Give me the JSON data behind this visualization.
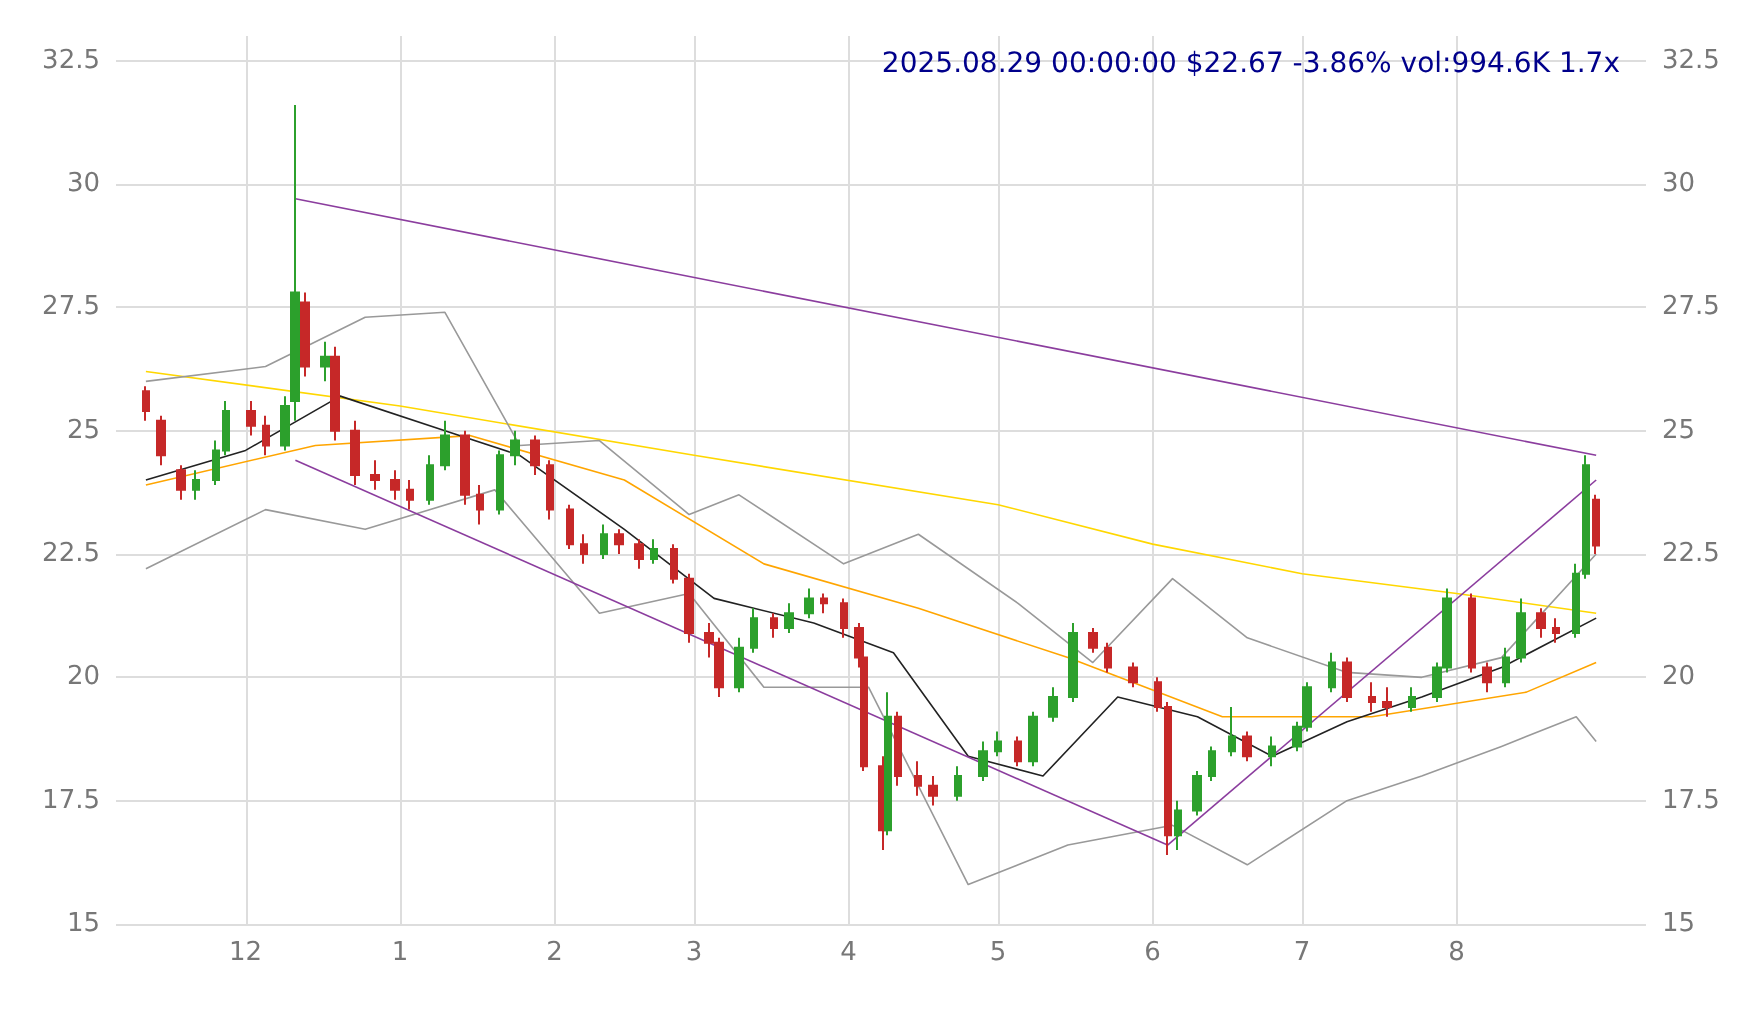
{
  "chart_data": {
    "type": "candlestick",
    "title": "2025.08.29 00:00:00 $22.67 -3.86% vol:994.6K 1.7x",
    "x": [
      "2024-11-11",
      "2024-11-14",
      "2024-11-18",
      "2024-11-21",
      "2024-11-25",
      "2024-11-27",
      "2024-12-02",
      "2024-12-05",
      "2024-12-09",
      "2024-12-11",
      "2024-12-13",
      "2024-12-17",
      "2024-12-19",
      "2024-12-23",
      "2024-12-27",
      "2024-12-31",
      "2025-01-03",
      "2025-01-07",
      "2025-01-10",
      "2025-01-14",
      "2025-01-17",
      "2025-01-21",
      "2025-01-24",
      "2025-01-28",
      "2025-01-31",
      "2025-02-04",
      "2025-02-07",
      "2025-02-11",
      "2025-02-14",
      "2025-02-18",
      "2025-02-21",
      "2025-02-25",
      "2025-02-28",
      "2025-03-04",
      "2025-03-06",
      "2025-03-10",
      "2025-03-13",
      "2025-03-17",
      "2025-03-20",
      "2025-03-24",
      "2025-03-27",
      "2025-03-31",
      "2025-04-03",
      "2025-04-04",
      "2025-04-08",
      "2025-04-09",
      "2025-04-11",
      "2025-04-15",
      "2025-04-18",
      "2025-04-23",
      "2025-04-28",
      "2025-05-01",
      "2025-05-05",
      "2025-05-08",
      "2025-05-12",
      "2025-05-16",
      "2025-05-20",
      "2025-05-23",
      "2025-05-28",
      "2025-06-02",
      "2025-06-04",
      "2025-06-06",
      "2025-06-10",
      "2025-06-13",
      "2025-06-17",
      "2025-06-20",
      "2025-06-25",
      "2025-06-30",
      "2025-07-02",
      "2025-07-07",
      "2025-07-10",
      "2025-07-15",
      "2025-07-18",
      "2025-07-23",
      "2025-07-28",
      "2025-07-30",
      "2025-08-04",
      "2025-08-07",
      "2025-08-11",
      "2025-08-14",
      "2025-08-18",
      "2025-08-21",
      "2025-08-25",
      "2025-08-27",
      "2025-08-29"
    ],
    "ohlc": [
      [
        25.8,
        25.9,
        25.2,
        25.4
      ],
      [
        25.2,
        25.3,
        24.3,
        24.5
      ],
      [
        24.2,
        24.3,
        23.6,
        23.8
      ],
      [
        23.8,
        24.2,
        23.6,
        24.0
      ],
      [
        24.0,
        24.8,
        23.9,
        24.6
      ],
      [
        24.6,
        25.6,
        24.5,
        25.4
      ],
      [
        25.4,
        25.6,
        24.9,
        25.1
      ],
      [
        25.1,
        25.3,
        24.5,
        24.7
      ],
      [
        24.7,
        25.7,
        24.6,
        25.5
      ],
      [
        25.6,
        31.6,
        25.2,
        27.8
      ],
      [
        27.6,
        27.8,
        26.1,
        26.3
      ],
      [
        26.3,
        26.8,
        26.0,
        26.5
      ],
      [
        26.5,
        26.7,
        24.8,
        25.0
      ],
      [
        25.0,
        25.2,
        23.9,
        24.1
      ],
      [
        24.1,
        24.4,
        23.8,
        24.0
      ],
      [
        24.0,
        24.2,
        23.6,
        23.8
      ],
      [
        23.8,
        24.0,
        23.4,
        23.6
      ],
      [
        23.6,
        24.5,
        23.5,
        24.3
      ],
      [
        24.3,
        25.2,
        24.2,
        24.9
      ],
      [
        24.9,
        25.0,
        23.5,
        23.7
      ],
      [
        23.7,
        23.9,
        23.1,
        23.4
      ],
      [
        23.4,
        24.6,
        23.3,
        24.5
      ],
      [
        24.5,
        25.0,
        24.3,
        24.8
      ],
      [
        24.8,
        24.9,
        24.1,
        24.3
      ],
      [
        24.3,
        24.4,
        23.2,
        23.4
      ],
      [
        23.4,
        23.5,
        22.6,
        22.7
      ],
      [
        22.7,
        22.9,
        22.3,
        22.5
      ],
      [
        22.5,
        23.1,
        22.4,
        22.9
      ],
      [
        22.9,
        23.0,
        22.5,
        22.7
      ],
      [
        22.7,
        22.8,
        22.2,
        22.4
      ],
      [
        22.4,
        22.8,
        22.3,
        22.6
      ],
      [
        22.6,
        22.7,
        21.9,
        22.0
      ],
      [
        22.0,
        22.1,
        20.7,
        20.9
      ],
      [
        20.9,
        21.1,
        20.4,
        20.7
      ],
      [
        20.7,
        20.8,
        19.6,
        19.8
      ],
      [
        19.8,
        20.8,
        19.7,
        20.6
      ],
      [
        20.6,
        21.4,
        20.5,
        21.2
      ],
      [
        21.2,
        21.3,
        20.8,
        21.0
      ],
      [
        21.0,
        21.5,
        20.9,
        21.3
      ],
      [
        21.3,
        21.8,
        21.2,
        21.6
      ],
      [
        21.6,
        21.7,
        21.3,
        21.5
      ],
      [
        21.5,
        21.6,
        20.8,
        21.0
      ],
      [
        21.0,
        21.1,
        20.2,
        20.4
      ],
      [
        20.4,
        20.5,
        18.1,
        18.2
      ],
      [
        18.2,
        18.4,
        16.5,
        16.9
      ],
      [
        16.9,
        19.7,
        16.8,
        19.2
      ],
      [
        19.2,
        19.3,
        17.8,
        18.0
      ],
      [
        18.0,
        18.3,
        17.6,
        17.8
      ],
      [
        17.8,
        18.0,
        17.4,
        17.6
      ],
      [
        17.6,
        18.2,
        17.5,
        18.0
      ],
      [
        18.0,
        18.7,
        17.9,
        18.5
      ],
      [
        18.5,
        18.9,
        18.4,
        18.7
      ],
      [
        18.7,
        18.8,
        18.2,
        18.3
      ],
      [
        18.3,
        19.3,
        18.2,
        19.2
      ],
      [
        19.2,
        19.8,
        19.1,
        19.6
      ],
      [
        19.6,
        21.1,
        19.5,
        20.9
      ],
      [
        20.9,
        21.0,
        20.5,
        20.6
      ],
      [
        20.6,
        20.7,
        20.1,
        20.2
      ],
      [
        20.2,
        20.3,
        19.8,
        19.9
      ],
      [
        19.9,
        20.0,
        19.3,
        19.4
      ],
      [
        19.4,
        19.5,
        16.4,
        16.8
      ],
      [
        16.8,
        17.5,
        16.5,
        17.3
      ],
      [
        17.3,
        18.1,
        17.2,
        18.0
      ],
      [
        18.0,
        18.6,
        17.9,
        18.5
      ],
      [
        18.5,
        19.4,
        18.4,
        18.8
      ],
      [
        18.8,
        18.9,
        18.3,
        18.4
      ],
      [
        18.4,
        18.8,
        18.2,
        18.6
      ],
      [
        18.6,
        19.1,
        18.5,
        19.0
      ],
      [
        19.0,
        19.9,
        18.9,
        19.8
      ],
      [
        19.8,
        20.5,
        19.7,
        20.3
      ],
      [
        20.3,
        20.4,
        19.5,
        19.6
      ],
      [
        19.6,
        19.9,
        19.3,
        19.5
      ],
      [
        19.5,
        19.8,
        19.2,
        19.4
      ],
      [
        19.4,
        19.8,
        19.3,
        19.6
      ],
      [
        19.6,
        20.3,
        19.5,
        20.2
      ],
      [
        20.2,
        21.8,
        20.1,
        21.6
      ],
      [
        21.6,
        21.7,
        20.1,
        20.2
      ],
      [
        20.2,
        20.3,
        19.7,
        19.9
      ],
      [
        19.9,
        20.6,
        19.8,
        20.4
      ],
      [
        20.4,
        21.6,
        20.3,
        21.3
      ],
      [
        21.3,
        21.4,
        20.8,
        21.0
      ],
      [
        21.0,
        21.2,
        20.7,
        20.9
      ],
      [
        20.9,
        22.3,
        20.8,
        22.1
      ],
      [
        22.1,
        24.5,
        22.0,
        24.3
      ],
      [
        23.6,
        23.7,
        22.5,
        22.67
      ]
    ],
    "series": [
      {
        "type": "line",
        "color": "#ffd700",
        "x": [
          "2024-11-11",
          "2025-01-01",
          "2025-03-01",
          "2025-05-01",
          "2025-06-01",
          "2025-07-01",
          "2025-08-01",
          "2025-08-29"
        ],
        "values": [
          26.2,
          25.5,
          24.5,
          23.5,
          22.7,
          22.1,
          21.7,
          21.3
        ]
      },
      {
        "type": "line",
        "color": "#ffa500",
        "x": [
          "2024-11-11",
          "2024-12-15",
          "2025-01-15",
          "2025-02-15",
          "2025-03-15",
          "2025-04-15",
          "2025-05-15",
          "2025-06-15",
          "2025-07-15",
          "2025-08-15",
          "2025-08-29"
        ],
        "values": [
          23.9,
          24.7,
          24.9,
          24.0,
          22.3,
          21.4,
          20.4,
          19.2,
          19.2,
          19.7,
          20.3
        ]
      },
      {
        "type": "line",
        "color": "#222222",
        "x": [
          "2024-11-11",
          "2024-12-01",
          "2024-12-20",
          "2025-01-10",
          "2025-01-25",
          "2025-02-15",
          "2025-03-05",
          "2025-03-25",
          "2025-04-10",
          "2025-04-25",
          "2025-05-10",
          "2025-05-25",
          "2025-06-10",
          "2025-06-25",
          "2025-07-10",
          "2025-07-25",
          "2025-08-10",
          "2025-08-29"
        ],
        "values": [
          24.0,
          24.6,
          25.7,
          25.0,
          24.5,
          23.0,
          21.6,
          21.1,
          20.5,
          18.4,
          18.0,
          19.6,
          19.2,
          18.4,
          19.1,
          19.6,
          20.2,
          21.2
        ]
      },
      {
        "type": "line",
        "color": "#999999",
        "x": [
          "2024-11-11",
          "2024-12-05",
          "2024-12-25",
          "2025-01-10",
          "2025-01-25",
          "2025-02-10",
          "2025-02-28",
          "2025-03-10",
          "2025-03-31",
          "2025-04-15",
          "2025-05-05",
          "2025-05-20",
          "2025-06-05",
          "2025-06-20",
          "2025-07-10",
          "2025-07-25",
          "2025-08-10",
          "2025-08-29"
        ],
        "values": [
          26.0,
          26.3,
          27.3,
          27.4,
          24.7,
          24.8,
          23.3,
          23.7,
          22.3,
          22.9,
          21.5,
          20.3,
          22.0,
          20.8,
          20.1,
          20.0,
          20.4,
          22.5
        ]
      },
      {
        "type": "line",
        "color": "#999999",
        "x": [
          "2024-11-11",
          "2024-12-05",
          "2024-12-25",
          "2025-01-20",
          "2025-02-10",
          "2025-02-28",
          "2025-03-15",
          "2025-04-05",
          "2025-04-25",
          "2025-05-15",
          "2025-06-05",
          "2025-06-20",
          "2025-07-10",
          "2025-07-25",
          "2025-08-10",
          "2025-08-25",
          "2025-08-29"
        ],
        "values": [
          22.2,
          23.4,
          23.0,
          23.8,
          21.3,
          21.7,
          19.8,
          19.8,
          15.8,
          16.6,
          17.0,
          16.2,
          17.5,
          18.0,
          18.6,
          19.2,
          18.7
        ]
      },
      {
        "type": "line",
        "color": "#8b3d9e",
        "x": [
          "2024-12-11",
          "2025-08-29"
        ],
        "values": [
          29.7,
          24.5
        ]
      },
      {
        "type": "line",
        "color": "#8b3d9e",
        "x": [
          "2024-12-11",
          "2025-06-04"
        ],
        "values": [
          24.4,
          16.6
        ]
      },
      {
        "type": "line",
        "color": "#8b3d9e",
        "x": [
          "2025-06-04",
          "2025-08-29"
        ],
        "values": [
          16.6,
          24.0
        ]
      }
    ],
    "xlim": [
      "2024-11-05",
      "2025-09-08"
    ],
    "xticks": [
      {
        "value": "2024-12-01",
        "label": "12"
      },
      {
        "value": "2025-01-01",
        "label": "1"
      },
      {
        "value": "2025-02-01",
        "label": "2"
      },
      {
        "value": "2025-03-01",
        "label": "3"
      },
      {
        "value": "2025-04-01",
        "label": "4"
      },
      {
        "value": "2025-05-01",
        "label": "5"
      },
      {
        "value": "2025-06-01",
        "label": "6"
      },
      {
        "value": "2025-07-01",
        "label": "7"
      },
      {
        "value": "2025-08-01",
        "label": "8"
      }
    ],
    "ylim": [
      15,
      33
    ],
    "yticks": [
      15,
      17.5,
      20,
      22.5,
      25,
      27.5,
      30,
      32.5
    ],
    "y2lim": [
      15,
      33
    ],
    "y2ticks": [
      15,
      17.5,
      20,
      22.5,
      25,
      27.5,
      30,
      32.5
    ],
    "grid": true,
    "marker": "none"
  }
}
